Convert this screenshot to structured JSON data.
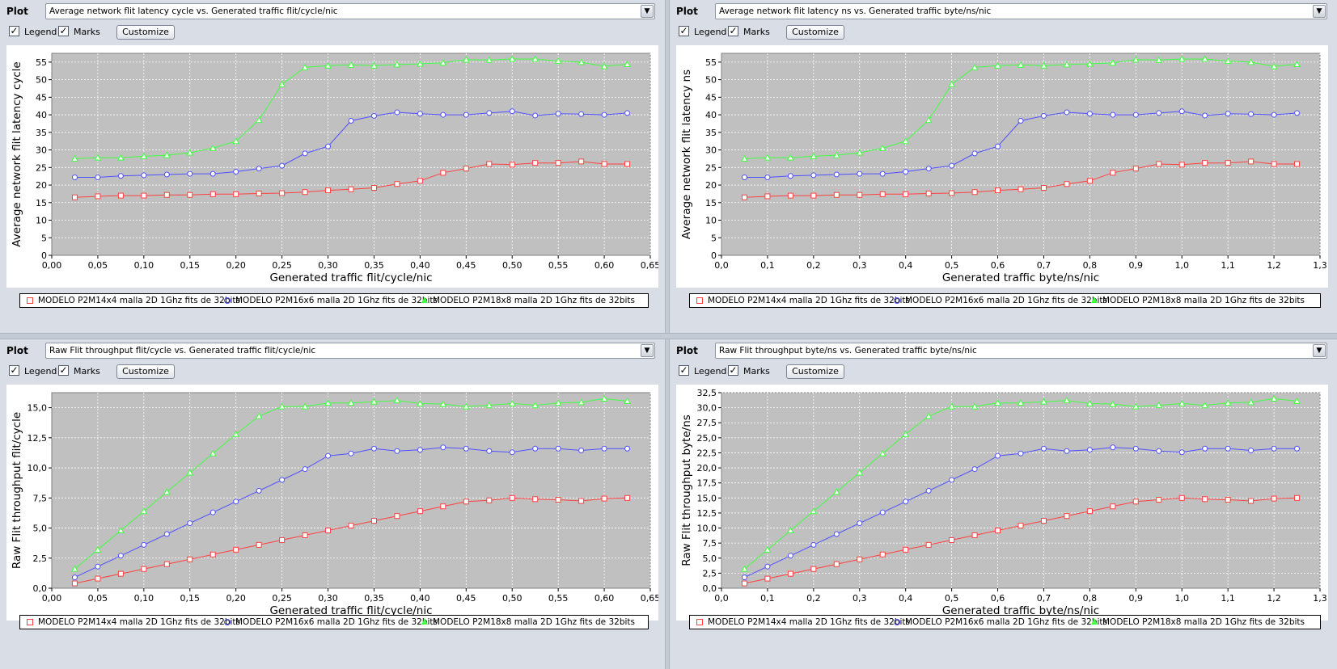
{
  "plot_label": "Plot",
  "legend_label": "Legend",
  "marks_label": "Marks",
  "customize_label": "Customize",
  "legend_checked": true,
  "marks_checked": true,
  "series_names": [
    "MODELO P2M14x4 malla 2D 1Ghz fits de 32bits",
    "MODELO P2M16x6 malla 2D 1Ghz fits de 32bits",
    "MODELO P2M18x8 malla 2D 1Ghz fits de 32bits"
  ],
  "series_colors": [
    "#ff4040",
    "#5050ff",
    "#40ff40"
  ],
  "series_markers": [
    "square",
    "circle",
    "triangle"
  ],
  "plot_background": "#c0c0c0",
  "grid_color": "#ffffff",
  "panels": [
    {
      "select_value": "Average network flit latency cycle vs. Generated traffic flit/cycle/nic"
    },
    {
      "select_value": "Average network flit latency ns vs. Generated traffic byte/ns/nic"
    },
    {
      "select_value": "Raw Flit throughput flit/cycle vs. Generated traffic flit/cycle/nic"
    },
    {
      "select_value": "Raw Flit throughput byte/ns vs. Generated traffic byte/ns/nic"
    }
  ],
  "chart_data": [
    {
      "type": "line",
      "xlabel": "Generated traffic flit/cycle/nic",
      "ylabel": "Average network flit latency cycle",
      "xlim": [
        0,
        0.65
      ],
      "ylim": [
        0,
        57.5
      ],
      "xticks": [
        "0,00",
        "0,05",
        "0,10",
        "0,15",
        "0,20",
        "0,25",
        "0,30",
        "0,35",
        "0,40",
        "0,45",
        "0,50",
        "0,55",
        "0,60",
        "0,65"
      ],
      "yticks": [
        "0",
        "5",
        "10",
        "15",
        "20",
        "25",
        "30",
        "35",
        "40",
        "45",
        "50",
        "55"
      ],
      "grid": true,
      "legend": "bottom",
      "x": [
        0.025,
        0.05,
        0.075,
        0.1,
        0.125,
        0.15,
        0.175,
        0.2,
        0.225,
        0.25,
        0.275,
        0.3,
        0.325,
        0.35,
        0.375,
        0.4,
        0.425,
        0.45,
        0.475,
        0.5,
        0.525,
        0.55,
        0.575,
        0.6,
        0.625
      ],
      "series": [
        {
          "name": "MODELO P2M14x4 malla 2D 1Ghz fits de 32bits",
          "values": [
            16.5,
            16.8,
            17.0,
            17.0,
            17.2,
            17.2,
            17.4,
            17.4,
            17.6,
            17.7,
            18.0,
            18.5,
            18.8,
            19.2,
            20.3,
            21.2,
            23.5,
            24.7,
            26.0,
            25.8,
            26.3,
            26.3,
            26.7,
            26.0,
            26.0
          ]
        },
        {
          "name": "MODELO P2M16x6 malla 2D 1Ghz fits de 32bits",
          "values": [
            22.2,
            22.2,
            22.6,
            22.8,
            23.0,
            23.2,
            23.2,
            23.8,
            24.7,
            25.5,
            29.0,
            31.0,
            38.3,
            39.7,
            40.7,
            40.3,
            40.0,
            40.0,
            40.5,
            41.0,
            39.8,
            40.3,
            40.2,
            40.0,
            40.5
          ]
        },
        {
          "name": "MODELO P2M18x8 malla 2D 1Ghz fits de 32bits",
          "values": [
            27.5,
            27.8,
            27.8,
            28.2,
            28.5,
            29.2,
            30.5,
            32.5,
            38.5,
            48.7,
            53.5,
            54.0,
            54.2,
            54.0,
            54.3,
            54.5,
            54.8,
            55.7,
            55.6,
            55.9,
            55.9,
            55.3,
            55.0,
            53.8,
            54.4
          ]
        }
      ]
    },
    {
      "type": "line",
      "xlabel": "Generated traffic byte/ns/nic",
      "ylabel": "Average network flit latency ns",
      "xlim": [
        0,
        1.3
      ],
      "ylim": [
        0,
        57.5
      ],
      "xticks": [
        "0,0",
        "0,1",
        "0,2",
        "0,3",
        "0,4",
        "0,5",
        "0,6",
        "0,7",
        "0,8",
        "0,9",
        "1,0",
        "1,1",
        "1,2",
        "1,3"
      ],
      "yticks": [
        "0",
        "5",
        "10",
        "15",
        "20",
        "25",
        "30",
        "35",
        "40",
        "45",
        "50",
        "55"
      ],
      "grid": true,
      "legend": "bottom",
      "x": [
        0.05,
        0.1,
        0.15,
        0.2,
        0.25,
        0.3,
        0.35,
        0.4,
        0.45,
        0.5,
        0.55,
        0.6,
        0.65,
        0.7,
        0.75,
        0.8,
        0.85,
        0.9,
        0.95,
        1.0,
        1.05,
        1.1,
        1.15,
        1.2,
        1.25
      ],
      "series": [
        {
          "name": "MODELO P2M14x4 malla 2D 1Ghz fits de 32bits",
          "values": [
            16.5,
            16.8,
            17.0,
            17.0,
            17.2,
            17.2,
            17.4,
            17.4,
            17.6,
            17.7,
            18.0,
            18.5,
            18.8,
            19.2,
            20.3,
            21.2,
            23.5,
            24.7,
            26.0,
            25.8,
            26.3,
            26.3,
            26.7,
            26.0,
            26.0
          ]
        },
        {
          "name": "MODELO P2M16x6 malla 2D 1Ghz fits de 32bits",
          "values": [
            22.2,
            22.2,
            22.6,
            22.8,
            23.0,
            23.2,
            23.2,
            23.8,
            24.7,
            25.5,
            29.0,
            31.0,
            38.3,
            39.7,
            40.7,
            40.3,
            40.0,
            40.0,
            40.5,
            41.0,
            39.8,
            40.3,
            40.2,
            40.0,
            40.5
          ]
        },
        {
          "name": "MODELO P2M18x8 malla 2D 1Ghz fits de 32bits",
          "values": [
            27.5,
            27.8,
            27.8,
            28.2,
            28.5,
            29.2,
            30.5,
            32.5,
            38.5,
            48.7,
            53.5,
            54.0,
            54.2,
            54.0,
            54.3,
            54.5,
            54.8,
            55.7,
            55.6,
            55.9,
            55.9,
            55.3,
            55.0,
            53.8,
            54.4
          ]
        }
      ]
    },
    {
      "type": "line",
      "xlabel": "Generated traffic flit/cycle/nic",
      "ylabel": "Raw Flit throughput flit/cycle",
      "xlim": [
        0,
        0.65
      ],
      "ylim": [
        0,
        16.25
      ],
      "xticks": [
        "0,00",
        "0,05",
        "0,10",
        "0,15",
        "0,20",
        "0,25",
        "0,30",
        "0,35",
        "0,40",
        "0,45",
        "0,50",
        "0,55",
        "0,60",
        "0,65"
      ],
      "yticks": [
        "0,0",
        "2,5",
        "5,0",
        "7,5",
        "10,0",
        "12,5",
        "15,0"
      ],
      "grid": true,
      "legend": "bottom",
      "x": [
        0.025,
        0.05,
        0.075,
        0.1,
        0.125,
        0.15,
        0.175,
        0.2,
        0.225,
        0.25,
        0.275,
        0.3,
        0.325,
        0.35,
        0.375,
        0.4,
        0.425,
        0.45,
        0.475,
        0.5,
        0.525,
        0.55,
        0.575,
        0.6,
        0.625
      ],
      "series": [
        {
          "name": "MODELO P2M14x4 malla 2D 1Ghz fits de 32bits",
          "values": [
            0.4,
            0.8,
            1.2,
            1.6,
            2.0,
            2.4,
            2.8,
            3.2,
            3.6,
            4.0,
            4.4,
            4.8,
            5.2,
            5.6,
            6.0,
            6.4,
            6.8,
            7.2,
            7.3,
            7.5,
            7.4,
            7.35,
            7.25,
            7.45,
            7.5
          ]
        },
        {
          "name": "MODELO P2M16x6 malla 2D 1Ghz fits de 32bits",
          "values": [
            0.9,
            1.8,
            2.7,
            3.6,
            4.5,
            5.4,
            6.3,
            7.2,
            8.1,
            9.0,
            9.9,
            11.0,
            11.2,
            11.6,
            11.4,
            11.5,
            11.7,
            11.6,
            11.4,
            11.3,
            11.6,
            11.6,
            11.45,
            11.6,
            11.6
          ]
        },
        {
          "name": "MODELO P2M18x8 malla 2D 1Ghz fits de 32bits",
          "values": [
            1.6,
            3.2,
            4.8,
            6.4,
            8.0,
            9.6,
            11.2,
            12.8,
            14.3,
            15.1,
            15.1,
            15.4,
            15.4,
            15.5,
            15.6,
            15.35,
            15.3,
            15.1,
            15.2,
            15.35,
            15.2,
            15.4,
            15.45,
            15.75,
            15.55
          ]
        }
      ]
    },
    {
      "type": "line",
      "xlabel": "Generated traffic byte/ns/nic",
      "ylabel": "Raw Flit throughput byte/ns",
      "xlim": [
        0,
        1.3
      ],
      "ylim": [
        0,
        32.5
      ],
      "xticks": [
        "0,0",
        "0,1",
        "0,2",
        "0,3",
        "0,4",
        "0,5",
        "0,6",
        "0,7",
        "0,8",
        "0,9",
        "1,0",
        "1,1",
        "1,2",
        "1,3"
      ],
      "yticks": [
        "0,0",
        "2,5",
        "5,0",
        "7,5",
        "10,0",
        "12,5",
        "15,0",
        "17,5",
        "20,0",
        "22,5",
        "25,0",
        "27,5",
        "30,0",
        "32,5"
      ],
      "grid": true,
      "legend": "bottom",
      "x": [
        0.05,
        0.1,
        0.15,
        0.2,
        0.25,
        0.3,
        0.35,
        0.4,
        0.45,
        0.5,
        0.55,
        0.6,
        0.65,
        0.7,
        0.75,
        0.8,
        0.85,
        0.9,
        0.95,
        1.0,
        1.05,
        1.1,
        1.15,
        1.2,
        1.25
      ],
      "series": [
        {
          "name": "MODELO P2M14x4 malla 2D 1Ghz fits de 32bits",
          "values": [
            0.8,
            1.6,
            2.4,
            3.2,
            4.0,
            4.8,
            5.6,
            6.4,
            7.2,
            8.0,
            8.8,
            9.6,
            10.4,
            11.2,
            12.0,
            12.8,
            13.6,
            14.4,
            14.7,
            15.0,
            14.8,
            14.7,
            14.5,
            14.9,
            15.0
          ]
        },
        {
          "name": "MODELO P2M16x6 malla 2D 1Ghz fits de 32bits",
          "values": [
            1.8,
            3.6,
            5.4,
            7.2,
            9.0,
            10.8,
            12.6,
            14.4,
            16.2,
            18.0,
            19.8,
            22.0,
            22.4,
            23.2,
            22.8,
            23.0,
            23.4,
            23.2,
            22.8,
            22.6,
            23.2,
            23.2,
            22.9,
            23.2,
            23.2
          ]
        },
        {
          "name": "MODELO P2M18x8 malla 2D 1Ghz fits de 32bits",
          "values": [
            3.2,
            6.4,
            9.6,
            12.8,
            16.0,
            19.2,
            22.4,
            25.6,
            28.6,
            30.2,
            30.2,
            30.8,
            30.8,
            31.0,
            31.2,
            30.7,
            30.6,
            30.2,
            30.4,
            30.7,
            30.4,
            30.8,
            30.9,
            31.5,
            31.1
          ]
        }
      ]
    }
  ]
}
